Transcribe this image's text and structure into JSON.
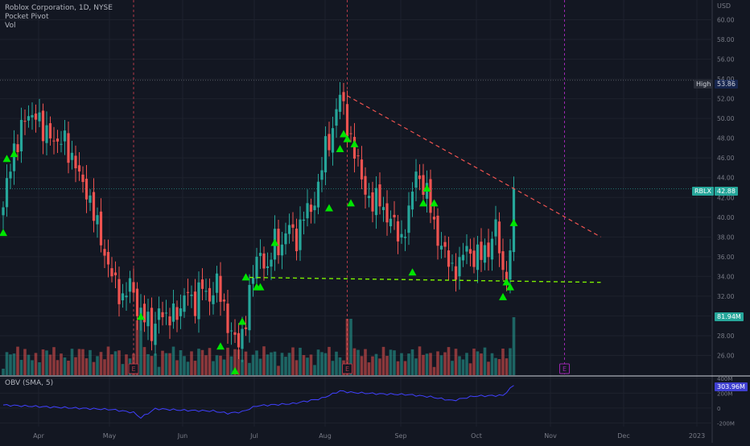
{
  "legend": {
    "line1": "Roblox Corporation, 1D, NYSE",
    "line2": "Pocket Pivot",
    "line3": "Vol"
  },
  "obv_label": "OBV (SMA, 5)",
  "currency": "USD",
  "high_label": "High",
  "high_value": "53.86",
  "last_price_label": "RBLX",
  "last_price": "42.88",
  "volume_badge": "81.94M",
  "obv_badge": "303.96M",
  "earnings_marker": "E",
  "colors": {
    "up": "#26a69a",
    "down": "#ef5350",
    "pivot": "#00e600",
    "resistance": "#ef5350",
    "support": "#7cf000",
    "obv": "#4040ff",
    "earnings_line": "#b23a48",
    "future_line": "#9c27b0"
  },
  "chart_data": {
    "type": "candlestick",
    "title": "Roblox Corporation, 1D, NYSE",
    "ylim": [
      24,
      62
    ],
    "price_ticks": [
      "26.00",
      "28.00",
      "30.00",
      "32.00",
      "34.00",
      "36.00",
      "38.00",
      "40.00",
      "42.00",
      "44.00",
      "46.00",
      "48.00",
      "50.00",
      "52.00",
      "54.00",
      "56.00",
      "58.00",
      "60.00"
    ],
    "x_ticks": [
      "Apr",
      "May",
      "Jun",
      "Jul",
      "Aug",
      "Sep",
      "Oct",
      "Nov",
      "Dec",
      "2023"
    ],
    "high": 53.86,
    "last": 42.88,
    "close_anchors": [
      [
        0,
        41
      ],
      [
        3,
        47
      ],
      [
        5,
        49
      ],
      [
        7,
        50
      ],
      [
        9,
        51
      ],
      [
        11,
        48
      ],
      [
        13,
        49
      ],
      [
        15,
        47
      ],
      [
        17,
        48
      ],
      [
        19,
        46
      ],
      [
        21,
        44
      ],
      [
        23,
        43
      ],
      [
        25,
        40
      ],
      [
        27,
        38
      ],
      [
        29,
        35
      ],
      [
        31,
        33
      ],
      [
        33,
        32
      ],
      [
        35,
        33
      ],
      [
        37,
        31
      ],
      [
        39,
        30
      ],
      [
        41,
        28
      ],
      [
        43,
        31
      ],
      [
        45,
        29
      ],
      [
        47,
        31
      ],
      [
        49,
        30
      ],
      [
        51,
        33
      ],
      [
        53,
        31
      ],
      [
        55,
        33
      ],
      [
        57,
        32
      ],
      [
        59,
        33
      ],
      [
        61,
        31
      ],
      [
        63,
        28
      ],
      [
        65,
        27
      ],
      [
        67,
        30
      ],
      [
        69,
        34
      ],
      [
        71,
        37
      ],
      [
        73,
        34
      ],
      [
        75,
        38
      ],
      [
        77,
        37
      ],
      [
        79,
        39
      ],
      [
        81,
        38
      ],
      [
        83,
        40
      ],
      [
        85,
        41
      ],
      [
        87,
        43
      ],
      [
        89,
        47
      ],
      [
        91,
        49
      ],
      [
        92,
        51
      ],
      [
        93,
        52
      ],
      [
        94,
        51
      ],
      [
        96,
        48
      ],
      [
        98,
        45
      ],
      [
        100,
        43
      ],
      [
        102,
        41
      ],
      [
        104,
        42
      ],
      [
        106,
        40
      ],
      [
        108,
        39
      ],
      [
        110,
        38
      ],
      [
        112,
        40
      ],
      [
        114,
        45
      ],
      [
        116,
        43
      ],
      [
        118,
        41
      ],
      [
        120,
        38
      ],
      [
        122,
        36
      ],
      [
        124,
        35
      ],
      [
        126,
        35
      ],
      [
        128,
        37
      ],
      [
        130,
        36
      ],
      [
        132,
        36
      ],
      [
        134,
        37
      ],
      [
        136,
        39
      ],
      [
        138,
        34
      ],
      [
        140,
        36
      ],
      [
        141,
        42.88
      ]
    ],
    "pivot_markers": [
      [
        0,
        38.5
      ],
      [
        1,
        46
      ],
      [
        3,
        46.5
      ],
      [
        38,
        30
      ],
      [
        60,
        27
      ],
      [
        64,
        24.5
      ],
      [
        66,
        29.5
      ],
      [
        67,
        34
      ],
      [
        70,
        33
      ],
      [
        71,
        33
      ],
      [
        75,
        37.5
      ],
      [
        90,
        41
      ],
      [
        93,
        47
      ],
      [
        94,
        48.5
      ],
      [
        95,
        48
      ],
      [
        96,
        41.5
      ],
      [
        97,
        47.5
      ],
      [
        113,
        34.5
      ],
      [
        116,
        41.5
      ],
      [
        117,
        43
      ],
      [
        119,
        41.5
      ],
      [
        138,
        32
      ],
      [
        139,
        33.5
      ],
      [
        140,
        33
      ],
      [
        141,
        39.5
      ]
    ],
    "earnings_bars": [
      36,
      95
    ],
    "future_earnings_bar": 155,
    "resistance_line": {
      "from": [
        95,
        52.3
      ],
      "to": [
        165,
        38
      ]
    },
    "support_line": {
      "from": [
        68,
        33.9
      ],
      "to": [
        165,
        33.4
      ]
    },
    "obv_ticks": [
      "400M",
      "200M",
      "0",
      "-200M"
    ],
    "obv_last": 303.96
  }
}
